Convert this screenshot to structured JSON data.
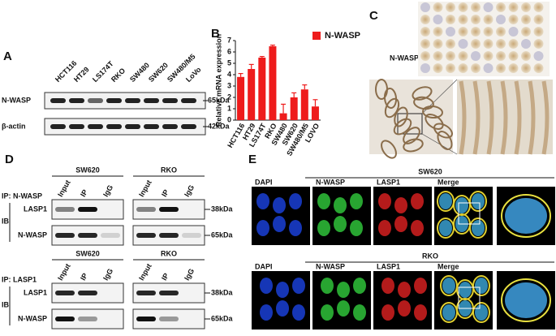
{
  "panel_labels": [
    "A",
    "B",
    "C",
    "D",
    "E"
  ],
  "panel_a": {
    "lanes": [
      "HCT116",
      "HT29",
      "LS174T",
      "RKO",
      "SW480",
      "SW620",
      "SW480/M5",
      "LoVo"
    ],
    "rows": [
      {
        "label": "N-WASP",
        "size": "65kDa"
      },
      {
        "label": "β-actin",
        "size": "42kDa"
      }
    ]
  },
  "chart_data": {
    "type": "bar",
    "y_label": "Relative mRNA expression",
    "categories": [
      "HCT116",
      "HT29",
      "LS174T",
      "RKO",
      "SW480",
      "SW620",
      "SW480/M5",
      "LOVO"
    ],
    "series": [
      {
        "name": "N-WASP",
        "color": "#ee1c1c",
        "values": [
          3.8,
          4.5,
          5.5,
          6.5,
          0.6,
          2.0,
          2.7,
          1.2
        ],
        "errors": [
          0.3,
          0.4,
          0.1,
          0.1,
          0.8,
          0.4,
          0.4,
          0.6
        ]
      }
    ],
    "ylim": [
      0,
      7
    ],
    "yticks": [
      0,
      1,
      2,
      3,
      4,
      5,
      6,
      7
    ],
    "legend": "upper right"
  },
  "panel_c": {
    "label": "N-WASP"
  },
  "panel_d": {
    "ib": "IB",
    "blocks": [
      {
        "ip": "IP: N-WASP",
        "cells": [
          "SW620",
          "RKO"
        ],
        "lanes": [
          [
            "Input",
            "IP",
            "IgG"
          ],
          [
            "Input",
            "IP",
            "IgG"
          ]
        ],
        "rows": [
          {
            "label": "LASP1",
            "size": "38kDa"
          },
          {
            "label": "N-WASP",
            "size": "65kDa"
          }
        ]
      },
      {
        "ip": "IP: LASP1",
        "cells": [
          "SW620",
          "RKO"
        ],
        "lanes": [
          [
            "Input",
            "IP",
            "IgG"
          ],
          [
            "Input",
            "IP",
            "IgG"
          ]
        ],
        "rows": [
          {
            "label": "LASP1",
            "size": "38kDa"
          },
          {
            "label": "N-WASP",
            "size": "65kDa"
          }
        ]
      }
    ]
  },
  "panel_e": {
    "rows": [
      {
        "cell": "SW620",
        "columns": [
          "DAPI",
          "N-WASP",
          "LASP1",
          "Merge"
        ]
      },
      {
        "cell": "RKO",
        "columns": [
          "DAPI",
          "N-WASP",
          "LASP1",
          "Merge"
        ]
      }
    ]
  }
}
